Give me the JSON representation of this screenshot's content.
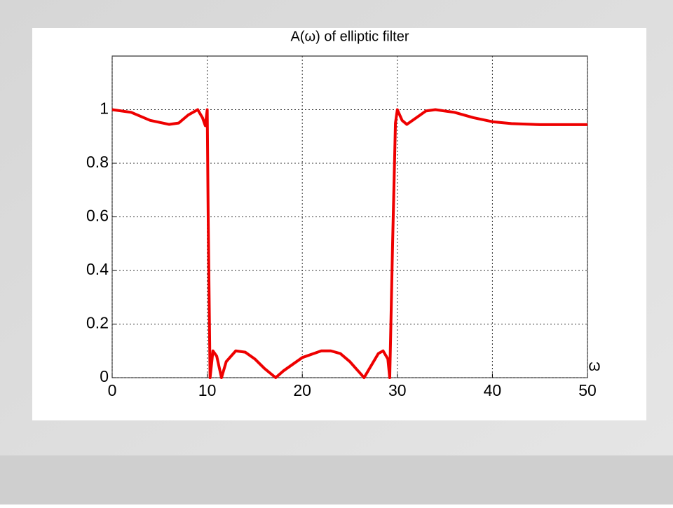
{
  "chart_data": {
    "type": "line",
    "title": "A(ω) of elliptic filter",
    "x_label": "ω",
    "x": [
      0,
      2,
      4,
      6,
      7,
      8,
      9,
      9.5,
      9.8,
      10,
      10.1,
      10.3,
      10.6,
      11,
      11.5,
      12,
      13,
      14,
      15,
      16,
      17.2,
      18,
      20,
      22,
      23,
      24,
      25,
      26,
      26.5,
      27,
      28,
      28.5,
      29,
      29.2,
      29.5,
      29.8,
      30,
      30.5,
      31,
      32,
      33,
      34,
      36,
      38,
      40,
      42,
      45,
      50
    ],
    "values": [
      1.0,
      0.99,
      0.96,
      0.945,
      0.95,
      0.98,
      1.0,
      0.97,
      0.94,
      1.0,
      0.6,
      0.0,
      0.1,
      0.08,
      0.0,
      0.06,
      0.1,
      0.095,
      0.07,
      0.035,
      0.0,
      0.025,
      0.075,
      0.1,
      0.1,
      0.09,
      0.06,
      0.02,
      0.0,
      0.03,
      0.09,
      0.1,
      0.07,
      0.0,
      0.5,
      0.95,
      1.0,
      0.96,
      0.945,
      0.97,
      0.995,
      1.0,
      0.99,
      0.97,
      0.955,
      0.948,
      0.944,
      0.944
    ],
    "color": "#ee0000",
    "xlim": [
      0,
      50
    ],
    "xticks": [
      0,
      10,
      20,
      30,
      40,
      50
    ],
    "ylim": [
      0,
      1.2
    ],
    "yticks": [
      0,
      0.2,
      0.4,
      0.6,
      0.8,
      1
    ],
    "grid": true
  }
}
